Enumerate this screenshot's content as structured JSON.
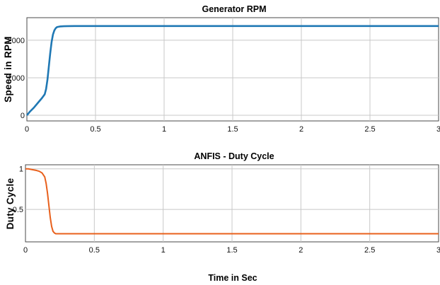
{
  "chart_data": [
    {
      "type": "line",
      "title": "Generator RPM",
      "xlabel": "",
      "ylabel": "Speed in RPM",
      "xlim": [
        0,
        3
      ],
      "ylim": [
        -150,
        2600
      ],
      "xticks": [
        0,
        0.5,
        1,
        1.5,
        2,
        2.5,
        3
      ],
      "xtick_labels": [
        "0",
        "0.5",
        "1",
        "1.5",
        "2",
        "2.5",
        "3"
      ],
      "yticks": [
        0,
        1000,
        2000
      ],
      "ytick_labels": [
        "0",
        "1000",
        "2000"
      ],
      "grid": true,
      "color": "#1f78b4",
      "series": [
        {
          "x": [
            0,
            0.02,
            0.05,
            0.08,
            0.11,
            0.13,
            0.14,
            0.15,
            0.16,
            0.17,
            0.18,
            0.19,
            0.2,
            0.21,
            0.22,
            0.24,
            0.27,
            0.3,
            0.35,
            0.5,
            1,
            1.5,
            2,
            2.5,
            3
          ],
          "y": [
            0,
            90,
            200,
            330,
            460,
            560,
            700,
            950,
            1300,
            1650,
            1950,
            2150,
            2260,
            2320,
            2350,
            2365,
            2372,
            2375,
            2377,
            2378,
            2378,
            2378,
            2378,
            2378,
            2378
          ]
        }
      ]
    },
    {
      "type": "line",
      "title": "ANFIS - Duty Cycle",
      "xlabel": "Time in Sec",
      "ylabel": "Duty Cycle",
      "xlim": [
        0,
        3
      ],
      "ylim": [
        0.1,
        1.05
      ],
      "xticks": [
        0,
        0.5,
        1,
        1.5,
        2,
        2.5,
        3
      ],
      "xtick_labels": [
        "0",
        "0.5",
        "1",
        "1.5",
        "2",
        "2.5",
        "3"
      ],
      "yticks": [
        0.5,
        1
      ],
      "ytick_labels": [
        "0.5",
        "1"
      ],
      "grid": true,
      "color": "#e8601c",
      "series": [
        {
          "x": [
            0,
            0.02,
            0.05,
            0.08,
            0.1,
            0.12,
            0.14,
            0.15,
            0.16,
            0.17,
            0.18,
            0.19,
            0.2,
            0.21,
            0.22,
            0.24,
            0.27,
            0.3,
            0.5,
            1,
            1.5,
            2,
            2.5,
            3
          ],
          "y": [
            1.0,
            1.0,
            0.99,
            0.98,
            0.97,
            0.95,
            0.9,
            0.82,
            0.7,
            0.55,
            0.4,
            0.29,
            0.23,
            0.21,
            0.2,
            0.2,
            0.2,
            0.2,
            0.2,
            0.2,
            0.2,
            0.2,
            0.2,
            0.2
          ]
        }
      ]
    }
  ]
}
